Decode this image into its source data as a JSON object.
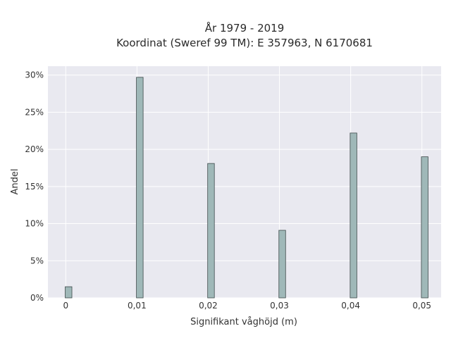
{
  "chart_data": {
    "type": "bar",
    "title": "År 1979 - 2019",
    "subtitle": "Koordinat (Sweref 99 TM): E 357963, N 6170681",
    "xlabel": "Signifikant våghöjd (m)",
    "ylabel": "Andel",
    "x": [
      0,
      0.01,
      0.02,
      0.03,
      0.04,
      0.05
    ],
    "x_tick_labels": [
      "0",
      "0,01",
      "0,02",
      "0,03",
      "0,04",
      "0,05"
    ],
    "values": [
      1.5,
      29.7,
      18.1,
      9.1,
      22.2,
      19.0
    ],
    "y_ticks": [
      0,
      5,
      10,
      15,
      20,
      25,
      30
    ],
    "y_tick_labels": [
      "0%",
      "5%",
      "10%",
      "15%",
      "20%",
      "25%",
      "30%"
    ],
    "xlim": [
      -0.0025,
      0.0527
    ],
    "ylim": [
      0,
      31.2
    ],
    "grid": true,
    "colors": {
      "bar_fill": "#9fb8b8",
      "bar_stroke": "#3d4a4a",
      "plot_bg": "#e9e9f0",
      "grid": "#ffffff"
    }
  }
}
